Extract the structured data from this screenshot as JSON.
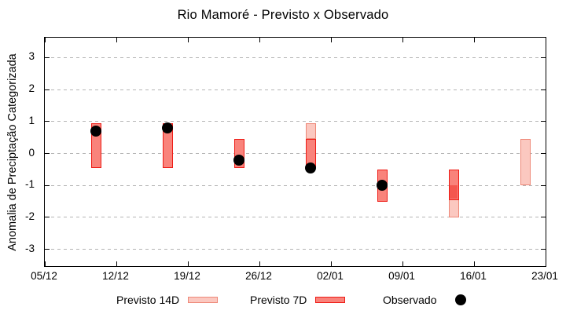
{
  "title": "Rio Mamoré - Previsto x Observado",
  "y_axis": {
    "label": "Anomalia de Preciptação Categorizada",
    "tick_labels": [
      "3",
      "2",
      "1",
      "0",
      "-1",
      "-2",
      "-3"
    ],
    "tick_values": [
      3,
      2,
      1,
      0,
      -1,
      -2,
      -3
    ]
  },
  "x_axis": {
    "tick_labels": [
      "05/12",
      "12/12",
      "19/12",
      "26/12",
      "02/01",
      "09/01",
      "16/01",
      "23/01"
    ]
  },
  "legend": {
    "previsto_14d": "Previsto 14D",
    "previsto_7d": "Previsto 7D",
    "observado": "Observado"
  },
  "colors": {
    "pink_fill": "#fbc8c0",
    "pink_border": "#ee8878",
    "red_fill": "#f9837b",
    "red_border": "#ee1c16",
    "overlap_fill": "#f4574f",
    "grid": "#b4b4b4",
    "dot": "#000000"
  },
  "chart_data": {
    "type": "bar",
    "subtype": "forecast-range-boxes-with-observed-points",
    "title": "Rio Mamoré - Previsto x Observado",
    "xlabel": "",
    "ylabel": "Anomalia de Preciptação Categorizada",
    "ylim": [
      -3.5,
      3.6
    ],
    "x_tick_labels": [
      "05/12",
      "12/12",
      "19/12",
      "26/12",
      "02/01",
      "09/01",
      "16/01",
      "23/01"
    ],
    "y_tick_values": [
      3,
      2,
      1,
      0,
      -1,
      -2,
      -3
    ],
    "grid": "horizontal dashed at integer y values",
    "legend_position": "below plot, horizontal",
    "series_names": [
      "Previsto 14D",
      "Previsto 7D",
      "Observado"
    ],
    "series": [
      {
        "date": "10/12",
        "previsto_14d": null,
        "previsto_7d": [
          -0.45,
          0.95
        ],
        "observado": 0.7
      },
      {
        "date": "17/12",
        "previsto_14d": null,
        "previsto_7d": [
          -0.45,
          0.95
        ],
        "observado": 0.8
      },
      {
        "date": "24/12",
        "previsto_14d": null,
        "previsto_7d": [
          -0.45,
          0.45
        ],
        "observado": -0.2
      },
      {
        "date": "31/12",
        "previsto_14d": [
          0.45,
          0.95
        ],
        "previsto_7d": [
          -0.45,
          0.45
        ],
        "observado": -0.45
      },
      {
        "date": "07/01",
        "previsto_14d": null,
        "previsto_7d": [
          -1.5,
          -0.5
        ],
        "observado": -1.0
      },
      {
        "date": "14/01",
        "previsto_14d": [
          -2.0,
          -1.0
        ],
        "previsto_7d": [
          -1.45,
          -0.5
        ],
        "observado": null
      },
      {
        "date": "21/01",
        "previsto_14d": [
          -1.0,
          0.45
        ],
        "previsto_7d": null,
        "observado": null
      }
    ]
  }
}
